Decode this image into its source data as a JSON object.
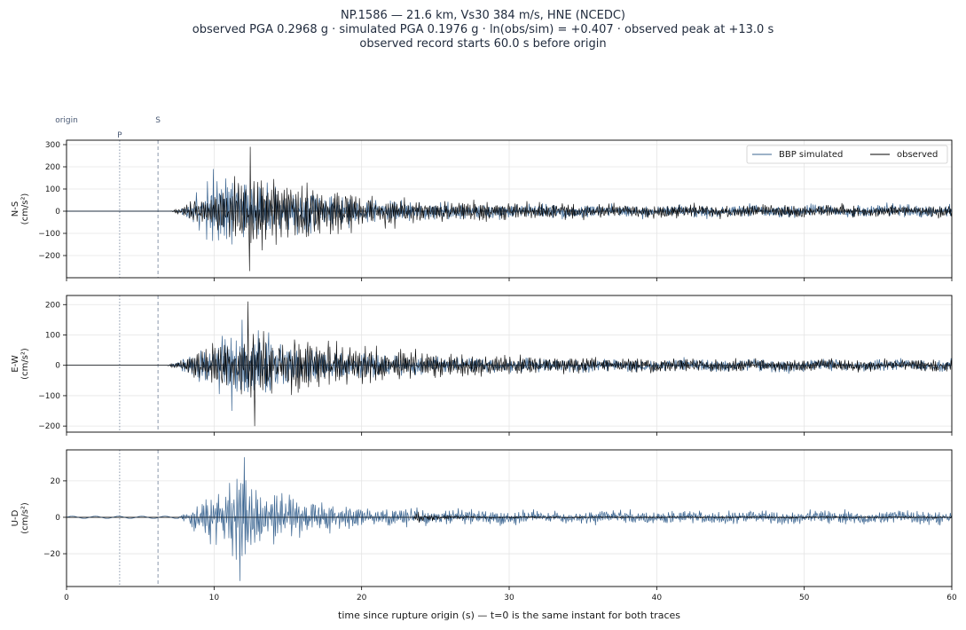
{
  "header": {
    "line1": "NP.1586  —  21.6 km, Vs30 384 m/s, HNE (NCEDC)",
    "line2": "observed PGA 0.2968 g   ·   simulated PGA 0.1976 g   ·   ln(obs/sim) = +0.407   ·   observed peak at +13.0 s",
    "line3": "observed record starts 60.0 s before origin"
  },
  "colors": {
    "simulated": "#3b6591",
    "observed": "#000000",
    "grid": "#e4e4e4",
    "marker": "#8a97ab"
  },
  "chart_data": {
    "type": "line",
    "xlabel": "time since rupture origin (s)   —   t=0 is the same instant for both traces",
    "xlim": [
      0,
      60
    ],
    "xticks": [
      0,
      10,
      20,
      30,
      40,
      50,
      60
    ],
    "markers": [
      {
        "label": "origin",
        "t": 0,
        "style": "none"
      },
      {
        "label": "P",
        "t": 3.6,
        "style": "dotted"
      },
      {
        "label": "S",
        "t": 6.2,
        "style": "dashed"
      }
    ],
    "legend": {
      "position": "top-right",
      "entries": [
        "BBP simulated",
        "observed"
      ]
    },
    "panels": [
      {
        "name": "N-S",
        "ylabel": "N-S\n(cm/s²)",
        "ylim": [
          -300,
          320
        ],
        "yticks": [
          -200,
          -100,
          0,
          100,
          200,
          300
        ],
        "peaks": {
          "observed_max": 290,
          "observed_min": -270,
          "simulated_max": 190,
          "simulated_min": -150
        },
        "envelope": {
          "simulated": {
            "onset": 7.5,
            "peak_t": 10.5,
            "peak": 150,
            "decay": 6
          },
          "observed": {
            "onset": 7.0,
            "peak_t": 12.5,
            "peak": 150,
            "decay": 7
          }
        },
        "series": [
          {
            "name": "BBP simulated",
            "color_key": "simulated"
          },
          {
            "name": "observed",
            "color_key": "observed"
          }
        ]
      },
      {
        "name": "E-W",
        "ylabel": "E-W\n(cm/s²)",
        "ylim": [
          -220,
          230
        ],
        "yticks": [
          -200,
          -100,
          0,
          100,
          200
        ],
        "peaks": {
          "observed_max": 210,
          "observed_min": -200,
          "simulated_max": 150,
          "simulated_min": -150
        },
        "envelope": {
          "simulated": {
            "onset": 7.0,
            "peak_t": 11.5,
            "peak": 110,
            "decay": 5
          },
          "observed": {
            "onset": 6.8,
            "peak_t": 12.5,
            "peak": 100,
            "decay": 9
          }
        },
        "series": [
          {
            "name": "BBP simulated",
            "color_key": "simulated"
          },
          {
            "name": "observed",
            "color_key": "observed"
          }
        ]
      },
      {
        "name": "U-D",
        "ylabel": "U-D\n(cm/s²)",
        "ylim": [
          -38,
          37
        ],
        "yticks": [
          -20,
          0,
          20
        ],
        "peaks": {
          "observed_max": 3,
          "observed_min": -3,
          "simulated_max": 33,
          "simulated_min": -35
        },
        "envelope": {
          "simulated": {
            "onset": 7.6,
            "peak_t": 11.5,
            "peak": 20,
            "decay": 4
          },
          "observed": {
            "onset": 23.5,
            "peak_t": 23.6,
            "peak": 2.5,
            "decay": 1.5
          }
        },
        "series": [
          {
            "name": "BBP simulated",
            "color_key": "simulated"
          },
          {
            "name": "observed",
            "color_key": "observed"
          }
        ]
      }
    ]
  }
}
